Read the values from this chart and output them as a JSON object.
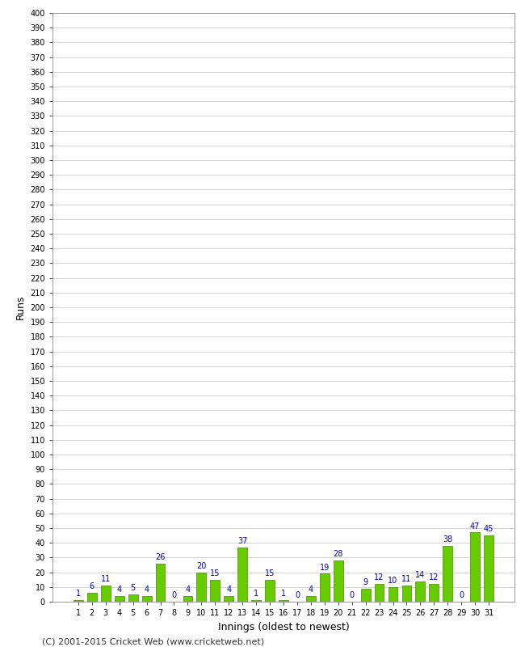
{
  "values": [
    1,
    6,
    11,
    4,
    5,
    4,
    26,
    0,
    4,
    20,
    15,
    4,
    37,
    1,
    15,
    1,
    0,
    4,
    19,
    28,
    0,
    9,
    12,
    10,
    11,
    14,
    12,
    38,
    0,
    47,
    45
  ],
  "innings": [
    1,
    2,
    3,
    4,
    5,
    6,
    7,
    8,
    9,
    10,
    11,
    12,
    13,
    14,
    15,
    16,
    17,
    18,
    19,
    20,
    21,
    22,
    23,
    24,
    25,
    26,
    27,
    28,
    29,
    30,
    31
  ],
  "bar_color": "#66cc00",
  "bar_edge_color": "#448800",
  "label_color": "#0000cc",
  "xlabel": "Innings (oldest to newest)",
  "ylabel": "Runs",
  "ylim": [
    0,
    400
  ],
  "background_color": "#ffffff",
  "grid_color": "#cccccc",
  "copyright_text": "(C) 2001-2015 Cricket Web (www.cricketweb.net)",
  "label_fontsize": 9,
  "tick_fontsize": 7,
  "bar_label_fontsize": 7,
  "copyright_fontsize": 8
}
